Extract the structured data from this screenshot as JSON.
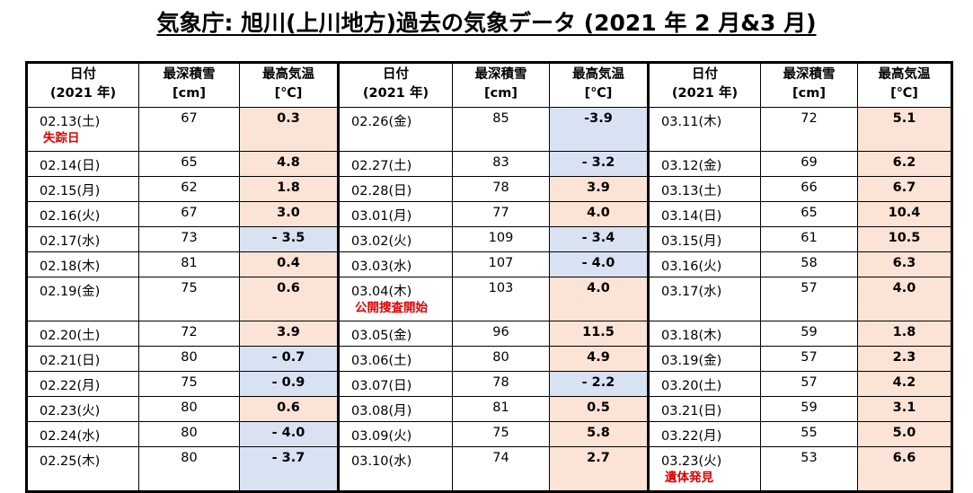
{
  "title": "気象庁: 旭川(上川地方)過去の気象データ (2021 年 2 月&3 月)",
  "headers": {
    "date": [
      "日付",
      "(2021 年)"
    ],
    "snow": [
      "最深積雪",
      "[cm]"
    ],
    "temp": [
      "最高気温",
      "[℃]"
    ]
  },
  "colors": {
    "warm": "#fbe3d6",
    "cold": "#d9e2f3",
    "label": "#e00000"
  },
  "rows": [
    [
      {
        "d": "02.13(土)",
        "s": "67",
        "t": "0.3",
        "c": "warm",
        "lbl": "失踪日"
      },
      {
        "d": "02.26(金)",
        "s": "85",
        "t": "-3.9",
        "c": "cold"
      },
      {
        "d": "03.11(木)",
        "s": "72",
        "t": "5.1",
        "c": "warm"
      }
    ],
    [
      {
        "d": "02.14(日)",
        "s": "65",
        "t": "4.8",
        "c": "warm"
      },
      {
        "d": "02.27(土)",
        "s": "83",
        "t": "- 3.2",
        "c": "cold"
      },
      {
        "d": "03.12(金)",
        "s": "69",
        "t": "6.2",
        "c": "warm"
      }
    ],
    [
      {
        "d": "02.15(月)",
        "s": "62",
        "t": "1.8",
        "c": "warm"
      },
      {
        "d": "02.28(日)",
        "s": "78",
        "t": "3.9",
        "c": "warm"
      },
      {
        "d": "03.13(土)",
        "s": "66",
        "t": "6.7",
        "c": "warm"
      }
    ],
    [
      {
        "d": "02.16(火)",
        "s": "67",
        "t": "3.0",
        "c": "warm"
      },
      {
        "d": "03.01(月)",
        "s": "77",
        "t": "4.0",
        "c": "warm"
      },
      {
        "d": "03.14(日)",
        "s": "65",
        "t": "10.4",
        "c": "warm"
      }
    ],
    [
      {
        "d": "02.17(水)",
        "s": "73",
        "t": "- 3.5",
        "c": "cold"
      },
      {
        "d": "03.02(火)",
        "s": "109",
        "t": "- 3.4",
        "c": "cold"
      },
      {
        "d": "03.15(月)",
        "s": "61",
        "t": "10.5",
        "c": "warm"
      }
    ],
    [
      {
        "d": "02.18(木)",
        "s": "81",
        "t": "0.4",
        "c": "warm"
      },
      {
        "d": "03.03(水)",
        "s": "107",
        "t": "- 4.0",
        "c": "cold"
      },
      {
        "d": "03.16(火)",
        "s": "58",
        "t": "6.3",
        "c": "warm"
      }
    ],
    [
      {
        "d": "02.19(金)",
        "s": "75",
        "t": "0.6",
        "c": "warm"
      },
      {
        "d": "03.04(木)",
        "s": "103",
        "t": "4.0",
        "c": "warm",
        "lbl": "公開捜査開始"
      },
      {
        "d": "03.17(水)",
        "s": "57",
        "t": "4.0",
        "c": "warm"
      }
    ],
    [
      {
        "d": "02.20(土)",
        "s": "72",
        "t": "3.9",
        "c": "warm"
      },
      {
        "d": "03.05(金)",
        "s": "96",
        "t": "11.5",
        "c": "warm"
      },
      {
        "d": "03.18(木)",
        "s": "59",
        "t": "1.8",
        "c": "warm"
      }
    ],
    [
      {
        "d": "02.21(日)",
        "s": "80",
        "t": "- 0.7",
        "c": "cold"
      },
      {
        "d": "03.06(土)",
        "s": "80",
        "t": "4.9",
        "c": "warm"
      },
      {
        "d": "03.19(金)",
        "s": "57",
        "t": "2.3",
        "c": "warm"
      }
    ],
    [
      {
        "d": "02.22(月)",
        "s": "75",
        "t": "- 0.9",
        "c": "cold"
      },
      {
        "d": "03.07(日)",
        "s": "78",
        "t": "- 2.2",
        "c": "cold"
      },
      {
        "d": "03.20(土)",
        "s": "57",
        "t": "4.2",
        "c": "warm"
      }
    ],
    [
      {
        "d": "02.23(火)",
        "s": "80",
        "t": "0.6",
        "c": "warm"
      },
      {
        "d": "03.08(月)",
        "s": "81",
        "t": "0.5",
        "c": "warm"
      },
      {
        "d": "03.21(日)",
        "s": "59",
        "t": "3.1",
        "c": "warm"
      }
    ],
    [
      {
        "d": "02.24(水)",
        "s": "80",
        "t": "- 4.0",
        "c": "cold"
      },
      {
        "d": "03.09(火)",
        "s": "75",
        "t": "5.8",
        "c": "warm"
      },
      {
        "d": "03.22(月)",
        "s": "55",
        "t": "5.0",
        "c": "warm"
      }
    ],
    [
      {
        "d": "02.25(木)",
        "s": "80",
        "t": "- 3.7",
        "c": "cold"
      },
      {
        "d": "03.10(水)",
        "s": "74",
        "t": "2.7",
        "c": "warm"
      },
      {
        "d": "03.23(火)",
        "s": "53",
        "t": "6.6",
        "c": "warm",
        "lbl": "遺体発見"
      }
    ]
  ]
}
